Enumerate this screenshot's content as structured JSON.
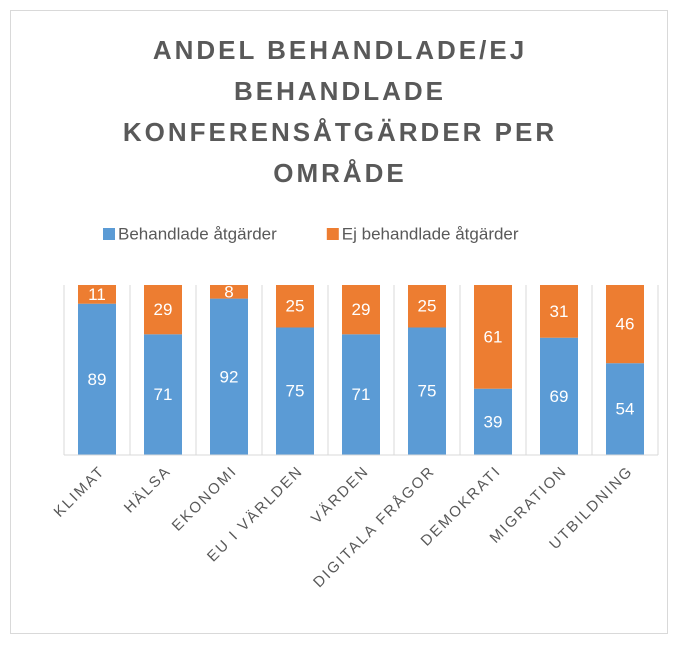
{
  "chart_data": {
    "type": "stacked_bar",
    "title": "ANDEL BEHANDLADE/EJ BEHANDLADE KONFERENSÅTGÄRDER PER OMRÅDE",
    "categories": [
      "KLIMAT",
      "HÄLSA",
      "EKONOMI",
      "EU I VÄRLDEN",
      "VÄRDEN",
      "DIGITALA FRÅGOR",
      "DEMOKRATI",
      "MIGRATION",
      "UTBILDNING"
    ],
    "series": [
      {
        "name": "Behandlade åtgärder",
        "color": "#5b9bd5",
        "values": [
          89,
          71,
          92,
          75,
          71,
          75,
          39,
          69,
          54
        ]
      },
      {
        "name": "Ej behandlade åtgärder",
        "color": "#ed7d31",
        "values": [
          11,
          29,
          8,
          25,
          29,
          25,
          61,
          31,
          46
        ]
      }
    ],
    "ylim": [
      0,
      100
    ],
    "legend": "top"
  }
}
